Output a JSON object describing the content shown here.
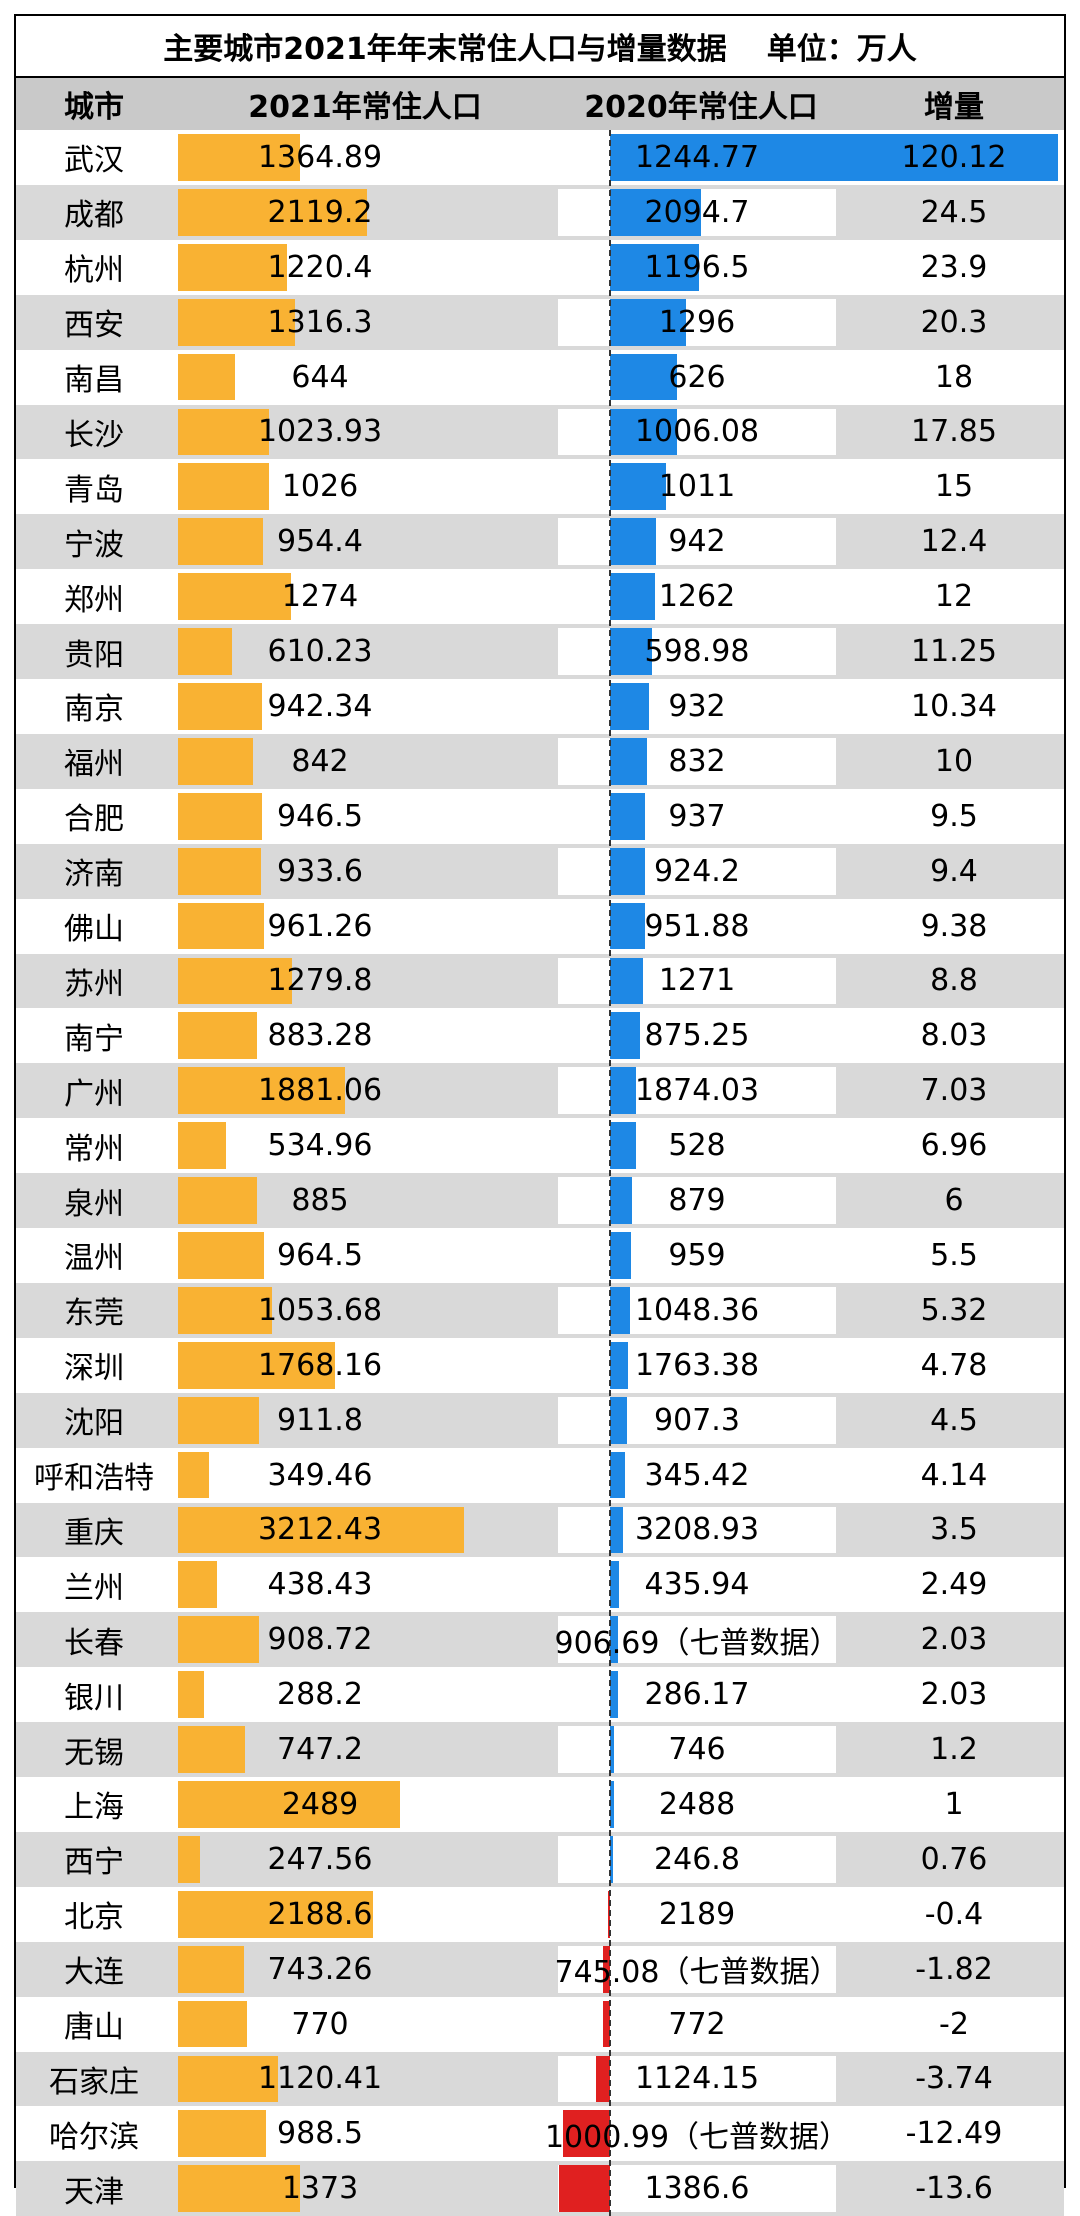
{
  "title": "主要城市2021年年末常住人口与增量数据",
  "unit": "单位：万人",
  "headers": {
    "city": "城市",
    "pop2021": "2021年常住人口",
    "pop2020": "2020年常住人口",
    "increase": "增量"
  },
  "colors": {
    "pop_bar": "#f9b233",
    "positive_bar": "#1e88e5",
    "negative_bar": "#e02020",
    "header_bg": "#c9c9c9",
    "stripe_bg": "#d9d9d9"
  },
  "chart_data": {
    "type": "table",
    "title": "主要城市2021年年末常住人口与增量数据",
    "columns": [
      "城市",
      "2021年常住人口",
      "2020年常住人口",
      "增量"
    ],
    "rows": [
      {
        "city": "武汉",
        "pop2021": "1364.89",
        "pop2020": "1244.77",
        "increase": "120.12"
      },
      {
        "city": "成都",
        "pop2021": "2119.2",
        "pop2020": "2094.7",
        "increase": "24.5"
      },
      {
        "city": "杭州",
        "pop2021": "1220.4",
        "pop2020": "1196.5",
        "increase": "23.9"
      },
      {
        "city": "西安",
        "pop2021": "1316.3",
        "pop2020": "1296",
        "increase": "20.3"
      },
      {
        "city": "南昌",
        "pop2021": "644",
        "pop2020": "626",
        "increase": "18"
      },
      {
        "city": "长沙",
        "pop2021": "1023.93",
        "pop2020": "1006.08",
        "increase": "17.85"
      },
      {
        "city": "青岛",
        "pop2021": "1026",
        "pop2020": "1011",
        "increase": "15"
      },
      {
        "city": "宁波",
        "pop2021": "954.4",
        "pop2020": "942",
        "increase": "12.4"
      },
      {
        "city": "郑州",
        "pop2021": "1274",
        "pop2020": "1262",
        "increase": "12"
      },
      {
        "city": "贵阳",
        "pop2021": "610.23",
        "pop2020": "598.98",
        "increase": "11.25"
      },
      {
        "city": "南京",
        "pop2021": "942.34",
        "pop2020": "932",
        "increase": "10.34"
      },
      {
        "city": "福州",
        "pop2021": "842",
        "pop2020": "832",
        "increase": "10"
      },
      {
        "city": "合肥",
        "pop2021": "946.5",
        "pop2020": "937",
        "increase": "9.5"
      },
      {
        "city": "济南",
        "pop2021": "933.6",
        "pop2020": "924.2",
        "increase": "9.4"
      },
      {
        "city": "佛山",
        "pop2021": "961.26",
        "pop2020": "951.88",
        "increase": "9.38"
      },
      {
        "city": "苏州",
        "pop2021": "1279.8",
        "pop2020": "1271",
        "increase": "8.8"
      },
      {
        "city": "南宁",
        "pop2021": "883.28",
        "pop2020": "875.25",
        "increase": "8.03"
      },
      {
        "city": "广州",
        "pop2021": "1881.06",
        "pop2020": "1874.03",
        "increase": "7.03"
      },
      {
        "city": "常州",
        "pop2021": "534.96",
        "pop2020": "528",
        "increase": "6.96"
      },
      {
        "city": "泉州",
        "pop2021": "885",
        "pop2020": "879",
        "increase": "6"
      },
      {
        "city": "温州",
        "pop2021": "964.5",
        "pop2020": "959",
        "increase": "5.5"
      },
      {
        "city": "东莞",
        "pop2021": "1053.68",
        "pop2020": "1048.36",
        "increase": "5.32"
      },
      {
        "city": "深圳",
        "pop2021": "1768.16",
        "pop2020": "1763.38",
        "increase": "4.78"
      },
      {
        "city": "沈阳",
        "pop2021": "911.8",
        "pop2020": "907.3",
        "increase": "4.5"
      },
      {
        "city": "呼和浩特",
        "pop2021": "349.46",
        "pop2020": "345.42",
        "increase": "4.14"
      },
      {
        "city": "重庆",
        "pop2021": "3212.43",
        "pop2020": "3208.93",
        "increase": "3.5"
      },
      {
        "city": "兰州",
        "pop2021": "438.43",
        "pop2020": "435.94",
        "increase": "2.49"
      },
      {
        "city": "长春",
        "pop2021": "908.72",
        "pop2020": "906.69（七普数据）",
        "increase": "2.03"
      },
      {
        "city": "银川",
        "pop2021": "288.2",
        "pop2020": "286.17",
        "increase": "2.03"
      },
      {
        "city": "无锡",
        "pop2021": "747.2",
        "pop2020": "746",
        "increase": "1.2"
      },
      {
        "city": "上海",
        "pop2021": "2489",
        "pop2020": "2488",
        "increase": "1"
      },
      {
        "city": "西宁",
        "pop2021": "247.56",
        "pop2020": "246.8",
        "increase": "0.76"
      },
      {
        "city": "北京",
        "pop2021": "2188.6",
        "pop2020": "2189",
        "increase": "-0.4"
      },
      {
        "city": "大连",
        "pop2021": "743.26",
        "pop2020": "745.08（七普数据）",
        "increase": "-1.82"
      },
      {
        "city": "唐山",
        "pop2021": "770",
        "pop2020": "772",
        "increase": "-2"
      },
      {
        "city": "石家庄",
        "pop2021": "1120.41",
        "pop2020": "1124.15",
        "increase": "-3.74"
      },
      {
        "city": "哈尔滨",
        "pop2021": "988.5",
        "pop2020": "1000.99（七普数据）",
        "increase": "-12.49"
      },
      {
        "city": "天津",
        "pop2021": "1373",
        "pop2020": "1386.6",
        "increase": "-13.6"
      }
    ],
    "bar_columns": {
      "pop2021": {
        "min": 0,
        "max": 3212.43
      },
      "increase": {
        "min": -13.6,
        "max": 120.12
      }
    }
  }
}
